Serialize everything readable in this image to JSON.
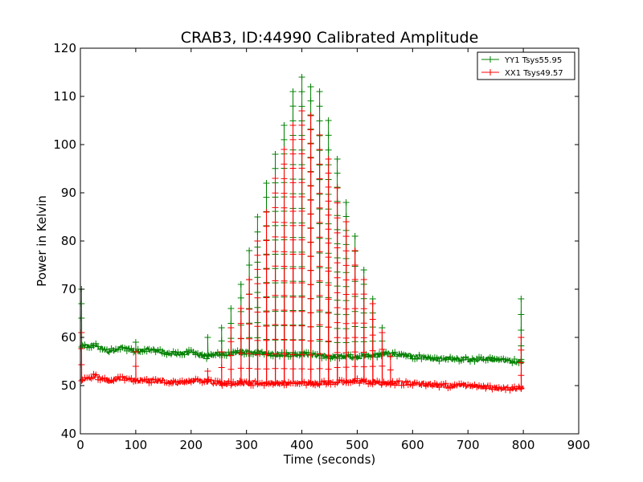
{
  "chart_data": {
    "type": "line",
    "title": "CRAB3, ID:44990 Calibrated Amplitude",
    "xlabel": "Time (seconds)",
    "ylabel": "Power in Kelvin",
    "xlim": [
      0,
      900
    ],
    "ylim": [
      40,
      120
    ],
    "xticks": [
      0,
      100,
      200,
      300,
      400,
      500,
      600,
      700,
      800,
      900
    ],
    "yticks": [
      40,
      50,
      60,
      70,
      80,
      90,
      100,
      110,
      120
    ],
    "grid": false,
    "legend_position": "top-right",
    "marker": "+",
    "series": [
      {
        "name": "YY1 Tsys55.95",
        "color": "#008000",
        "baseline": [
          [
            5,
            58
          ],
          [
            25,
            58.5
          ],
          [
            50,
            57
          ],
          [
            75,
            58
          ],
          [
            100,
            57
          ],
          [
            125,
            57.5
          ],
          [
            150,
            57
          ],
          [
            175,
            56.5
          ],
          [
            200,
            57
          ],
          [
            225,
            56
          ],
          [
            250,
            56.5
          ],
          [
            300,
            57
          ],
          [
            350,
            56.5
          ],
          [
            400,
            56.5
          ],
          [
            450,
            56
          ],
          [
            500,
            56
          ],
          [
            550,
            56.5
          ],
          [
            575,
            56.5
          ],
          [
            600,
            56
          ],
          [
            650,
            55.5
          ],
          [
            700,
            55.5
          ],
          [
            750,
            55.5
          ],
          [
            790,
            55
          ]
        ],
        "peaks": [
          [
            2,
            70
          ],
          [
            100,
            59
          ],
          [
            230,
            60
          ],
          [
            255,
            62
          ],
          [
            272,
            66
          ],
          [
            290,
            71
          ],
          [
            305,
            78
          ],
          [
            320,
            85
          ],
          [
            336,
            92
          ],
          [
            352,
            98
          ],
          [
            368,
            104
          ],
          [
            384,
            111
          ],
          [
            400,
            114
          ],
          [
            416,
            112
          ],
          [
            432,
            111
          ],
          [
            448,
            105
          ],
          [
            464,
            97
          ],
          [
            480,
            88
          ],
          [
            496,
            81
          ],
          [
            512,
            74
          ],
          [
            528,
            68
          ],
          [
            545,
            62
          ],
          [
            796,
            68
          ]
        ]
      },
      {
        "name": "XX1 Tsys49.57",
        "color": "#ff0000",
        "baseline": [
          [
            5,
            51
          ],
          [
            25,
            52
          ],
          [
            50,
            51
          ],
          [
            75,
            51.5
          ],
          [
            100,
            51
          ],
          [
            125,
            51
          ],
          [
            150,
            51
          ],
          [
            175,
            50.5
          ],
          [
            200,
            51
          ],
          [
            225,
            51
          ],
          [
            250,
            50.5
          ],
          [
            300,
            50.5
          ],
          [
            350,
            50.5
          ],
          [
            400,
            50.5
          ],
          [
            450,
            50.5
          ],
          [
            500,
            51
          ],
          [
            550,
            50.5
          ],
          [
            575,
            50.5
          ],
          [
            600,
            50.5
          ],
          [
            650,
            50
          ],
          [
            700,
            50
          ],
          [
            750,
            49.5
          ],
          [
            790,
            49.5
          ]
        ],
        "peaks": [
          [
            2,
            61
          ],
          [
            100,
            57
          ],
          [
            230,
            53
          ],
          [
            255,
            57
          ],
          [
            272,
            62
          ],
          [
            290,
            66
          ],
          [
            305,
            72
          ],
          [
            320,
            80
          ],
          [
            336,
            86
          ],
          [
            352,
            93
          ],
          [
            368,
            99
          ],
          [
            384,
            104
          ],
          [
            400,
            107
          ],
          [
            416,
            106
          ],
          [
            432,
            102
          ],
          [
            448,
            97
          ],
          [
            464,
            91
          ],
          [
            480,
            84
          ],
          [
            496,
            78
          ],
          [
            512,
            72
          ],
          [
            528,
            67
          ],
          [
            545,
            61
          ],
          [
            560,
            56
          ],
          [
            796,
            60
          ]
        ]
      }
    ]
  }
}
